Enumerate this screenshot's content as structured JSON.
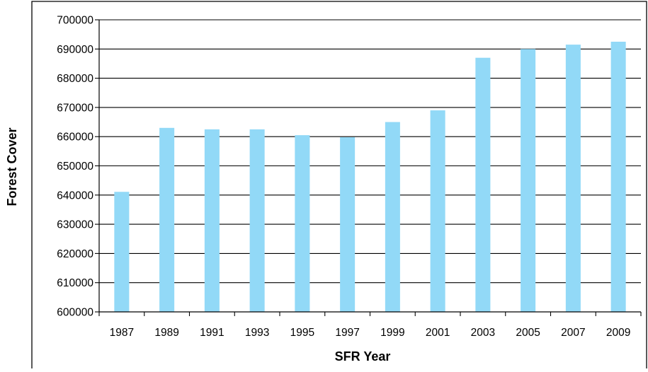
{
  "chart_data": {
    "type": "bar",
    "title": "",
    "xlabel": "SFR Year",
    "ylabel": "Forest Cover",
    "categories": [
      "1987",
      "1989",
      "1991",
      "1993",
      "1995",
      "1997",
      "1999",
      "2001",
      "2003",
      "2005",
      "2007",
      "2009"
    ],
    "values": [
      641100,
      663000,
      662500,
      662500,
      660500,
      659800,
      665000,
      669000,
      687000,
      690000,
      691500,
      692500
    ],
    "ylim": [
      600000,
      700000
    ],
    "yticks": [
      "600000",
      "610000",
      "620000",
      "630000",
      "640000",
      "650000",
      "660000",
      "670000",
      "680000",
      "690000",
      "700000"
    ],
    "grid": true,
    "legend": "none",
    "colors": {
      "bar": "#92d9f7",
      "grid": "#000000",
      "frame": "#000000"
    }
  }
}
